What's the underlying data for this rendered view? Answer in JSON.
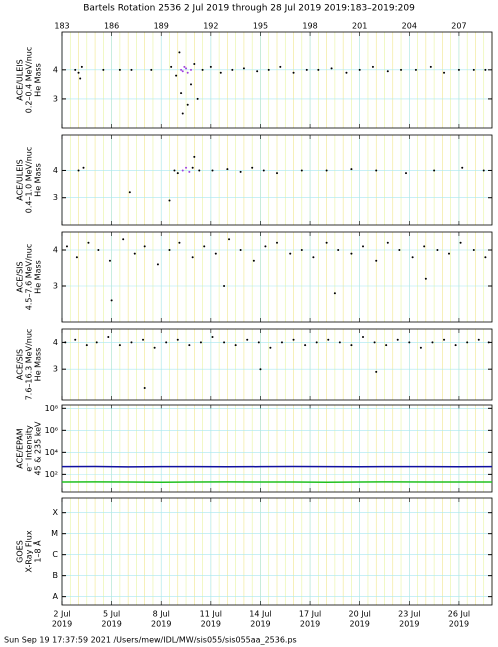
{
  "header": {
    "title": "Bartels Rotation 2536    2 Jul 2019 through 28 Jul 2019    2019:183–2019:209"
  },
  "footer": {
    "text": "Sun Sep 19 17:37:59 2021   /Users/mew/IDL/MW/sis055/sis055aa_2536.ps"
  },
  "time_axis": {
    "xlim": [
      183,
      209
    ],
    "top_ticks": [
      183,
      186,
      189,
      192,
      195,
      198,
      201,
      204,
      207
    ],
    "bottom_ticks": [
      {
        "value": 183,
        "label": "2 Jul",
        "year": "2019"
      },
      {
        "value": 186,
        "label": "5 Jul",
        "year": "2019"
      },
      {
        "value": 189,
        "label": "8 Jul",
        "year": "2019"
      },
      {
        "value": 192,
        "label": "11 Jul",
        "year": "2019"
      },
      {
        "value": 195,
        "label": "14 Jul",
        "year": "2019"
      },
      {
        "value": 198,
        "label": "17 Jul",
        "year": "2019"
      },
      {
        "value": 201,
        "label": "20 Jul",
        "year": "2019"
      },
      {
        "value": 204,
        "label": "23 Jul",
        "year": "2019"
      },
      {
        "value": 207,
        "label": "26 Jul",
        "year": "2019"
      }
    ]
  },
  "chart_data": [
    {
      "type": "scatter",
      "ylabel": [
        "ACE/ULEIS",
        "0.2–0.4 MeV/nuc",
        "He Mass"
      ],
      "ylim": [
        2,
        5.3
      ],
      "yticks": [
        3,
        4
      ],
      "grid": true,
      "series": [
        {
          "color": "#000000",
          "x": [
            183.8,
            184.0,
            184.2,
            185.5,
            186.5,
            187.2,
            188.4,
            189.6,
            189.9,
            190.2,
            190.6,
            191.0,
            191.5,
            192.0,
            192.6,
            193.3,
            194.0,
            194.8,
            195.5,
            196.2,
            197.0,
            197.8,
            198.5,
            199.3,
            200.2,
            201.0,
            201.8,
            202.7,
            203.5,
            204.4,
            205.3,
            206.1,
            207.0,
            207.9,
            208.6,
            190.3,
            190.8,
            190.1,
            184.1,
            191.2
          ],
          "y": [
            4.0,
            3.9,
            4.1,
            4.0,
            4.0,
            4.0,
            4.0,
            4.1,
            3.8,
            3.2,
            2.8,
            4.2,
            4.0,
            4.1,
            3.9,
            4.0,
            4.05,
            3.95,
            4.0,
            4.1,
            3.9,
            4.0,
            4.0,
            4.05,
            3.9,
            4.0,
            4.1,
            3.95,
            4.0,
            4.0,
            4.1,
            3.9,
            4.0,
            4.0,
            4.0,
            2.5,
            3.5,
            4.6,
            3.7,
            3.0
          ]
        },
        {
          "color": "#a040e0",
          "x": [
            190.2,
            190.4,
            190.6,
            190.8,
            190.5,
            190.3
          ],
          "y": [
            4.0,
            4.1,
            3.9,
            4.0,
            4.05,
            3.95
          ]
        }
      ]
    },
    {
      "type": "scatter",
      "ylabel": [
        "ACE/ULEIS",
        "0.4–1.0 MeV/nuc",
        "He Mass"
      ],
      "ylim": [
        2,
        5.3
      ],
      "yticks": [
        3,
        4
      ],
      "grid": true,
      "series": [
        {
          "color": "#000000",
          "x": [
            184.0,
            184.3,
            187.1,
            189.8,
            190.0,
            190.9,
            191.3,
            192.1,
            193.0,
            193.8,
            194.5,
            195.2,
            196.0,
            197.5,
            199.0,
            200.5,
            202.0,
            203.8,
            205.5,
            207.2,
            208.5,
            189.5,
            191.0
          ],
          "y": [
            4.0,
            4.1,
            3.2,
            4.0,
            3.9,
            4.1,
            4.0,
            4.0,
            4.05,
            3.95,
            4.1,
            4.0,
            3.9,
            4.0,
            4.0,
            4.05,
            4.0,
            3.9,
            4.0,
            4.1,
            4.0,
            2.9,
            4.5
          ]
        },
        {
          "color": "#a040e0",
          "x": [
            190.3,
            190.5,
            190.7
          ],
          "y": [
            4.0,
            4.1,
            3.95
          ]
        }
      ]
    },
    {
      "type": "scatter",
      "ylabel": [
        "ACE/SIS",
        "4.5–7.6 MeV/nuc",
        "He Mass"
      ],
      "ylim": [
        2,
        4.5
      ],
      "yticks": [
        3,
        4
      ],
      "grid": true,
      "series": [
        {
          "color": "#000000",
          "x": [
            183.3,
            183.9,
            184.6,
            185.2,
            185.9,
            186.7,
            187.4,
            188.0,
            188.8,
            189.5,
            190.1,
            190.9,
            191.6,
            192.3,
            193.1,
            193.8,
            194.6,
            195.3,
            196.0,
            196.8,
            197.5,
            198.2,
            199.0,
            199.7,
            200.5,
            201.2,
            202.0,
            202.7,
            203.4,
            204.2,
            204.9,
            205.7,
            206.4,
            207.1,
            207.9,
            208.6,
            186.0,
            192.8,
            199.5,
            205.0
          ],
          "y": [
            4.1,
            3.8,
            4.2,
            4.0,
            3.7,
            4.3,
            3.9,
            4.1,
            3.6,
            4.0,
            4.2,
            3.8,
            4.1,
            3.9,
            4.3,
            4.0,
            3.7,
            4.1,
            4.2,
            3.9,
            4.0,
            3.8,
            4.2,
            4.0,
            3.9,
            4.1,
            3.7,
            4.2,
            4.0,
            3.8,
            4.1,
            4.0,
            3.9,
            4.2,
            4.0,
            3.8,
            2.6,
            3.0,
            2.8,
            3.2
          ]
        }
      ]
    },
    {
      "type": "scatter",
      "ylabel": [
        "ACE/SIS",
        "7.6–16.3 MeV/nuc",
        "He Mass"
      ],
      "ylim": [
        1.85,
        4.5
      ],
      "yticks": [
        3,
        4
      ],
      "grid": true,
      "series": [
        {
          "color": "#000000",
          "x": [
            183.2,
            183.8,
            184.5,
            185.1,
            185.8,
            186.5,
            187.2,
            187.9,
            188.6,
            189.3,
            190.0,
            190.7,
            191.4,
            192.1,
            192.8,
            193.5,
            194.2,
            194.9,
            195.6,
            196.3,
            197.0,
            197.7,
            198.4,
            199.1,
            199.8,
            200.5,
            201.2,
            201.9,
            202.6,
            203.3,
            204.0,
            204.7,
            205.4,
            206.1,
            206.8,
            207.5,
            208.2,
            208.8,
            188.0,
            195.0,
            202.0
          ],
          "y": [
            4.0,
            4.1,
            3.9,
            4.0,
            4.2,
            3.9,
            4.0,
            4.1,
            3.8,
            4.0,
            4.1,
            3.9,
            4.0,
            4.2,
            4.0,
            3.9,
            4.1,
            4.0,
            3.8,
            4.0,
            4.1,
            3.9,
            4.0,
            4.1,
            4.0,
            3.9,
            4.2,
            4.0,
            3.9,
            4.1,
            4.0,
            3.8,
            4.0,
            4.1,
            3.9,
            4.0,
            4.1,
            4.0,
            2.3,
            3.0,
            2.9
          ]
        }
      ]
    },
    {
      "type": "line",
      "ylabel": [
        "ACE/EPAM",
        "e⁻ Intensity",
        "45 & 235 keV"
      ],
      "log_scale": true,
      "ylim": [
        2.5,
        200000000
      ],
      "yticks": [
        {
          "value": 100,
          "label": "10²"
        },
        {
          "value": 10000,
          "label": "10⁴"
        },
        {
          "value": 1000000,
          "label": "10⁶"
        },
        {
          "value": 100000000,
          "label": "10⁸"
        }
      ],
      "grid": true,
      "series": [
        {
          "color": "#1010a0",
          "x": [
            183,
            185,
            187,
            189,
            191,
            193,
            195,
            197,
            199,
            201,
            203,
            205,
            207,
            209
          ],
          "y": [
            500,
            520,
            480,
            500,
            510,
            490,
            500,
            520,
            500,
            490,
            510,
            500,
            490,
            500
          ]
        },
        {
          "color": "#20c020",
          "x": [
            183,
            185,
            187,
            189,
            191,
            193,
            195,
            197,
            199,
            201,
            203,
            205,
            207,
            209
          ],
          "y": [
            20,
            21,
            20,
            19,
            20,
            21,
            20,
            20,
            19,
            20,
            21,
            20,
            20,
            20
          ]
        }
      ]
    },
    {
      "type": "line",
      "ylabel": [
        "GOES",
        "X-Ray Flux",
        "1–8 Å"
      ],
      "log_scale": true,
      "ylim": [
        4e-09,
        0.0005
      ],
      "yticks": [
        {
          "value": 1e-08,
          "label": "A"
        },
        {
          "value": 1e-07,
          "label": "B"
        },
        {
          "value": 1e-06,
          "label": "C"
        },
        {
          "value": 1e-05,
          "label": "M"
        },
        {
          "value": 0.0001,
          "label": "X"
        }
      ],
      "grid": true,
      "series": []
    }
  ]
}
